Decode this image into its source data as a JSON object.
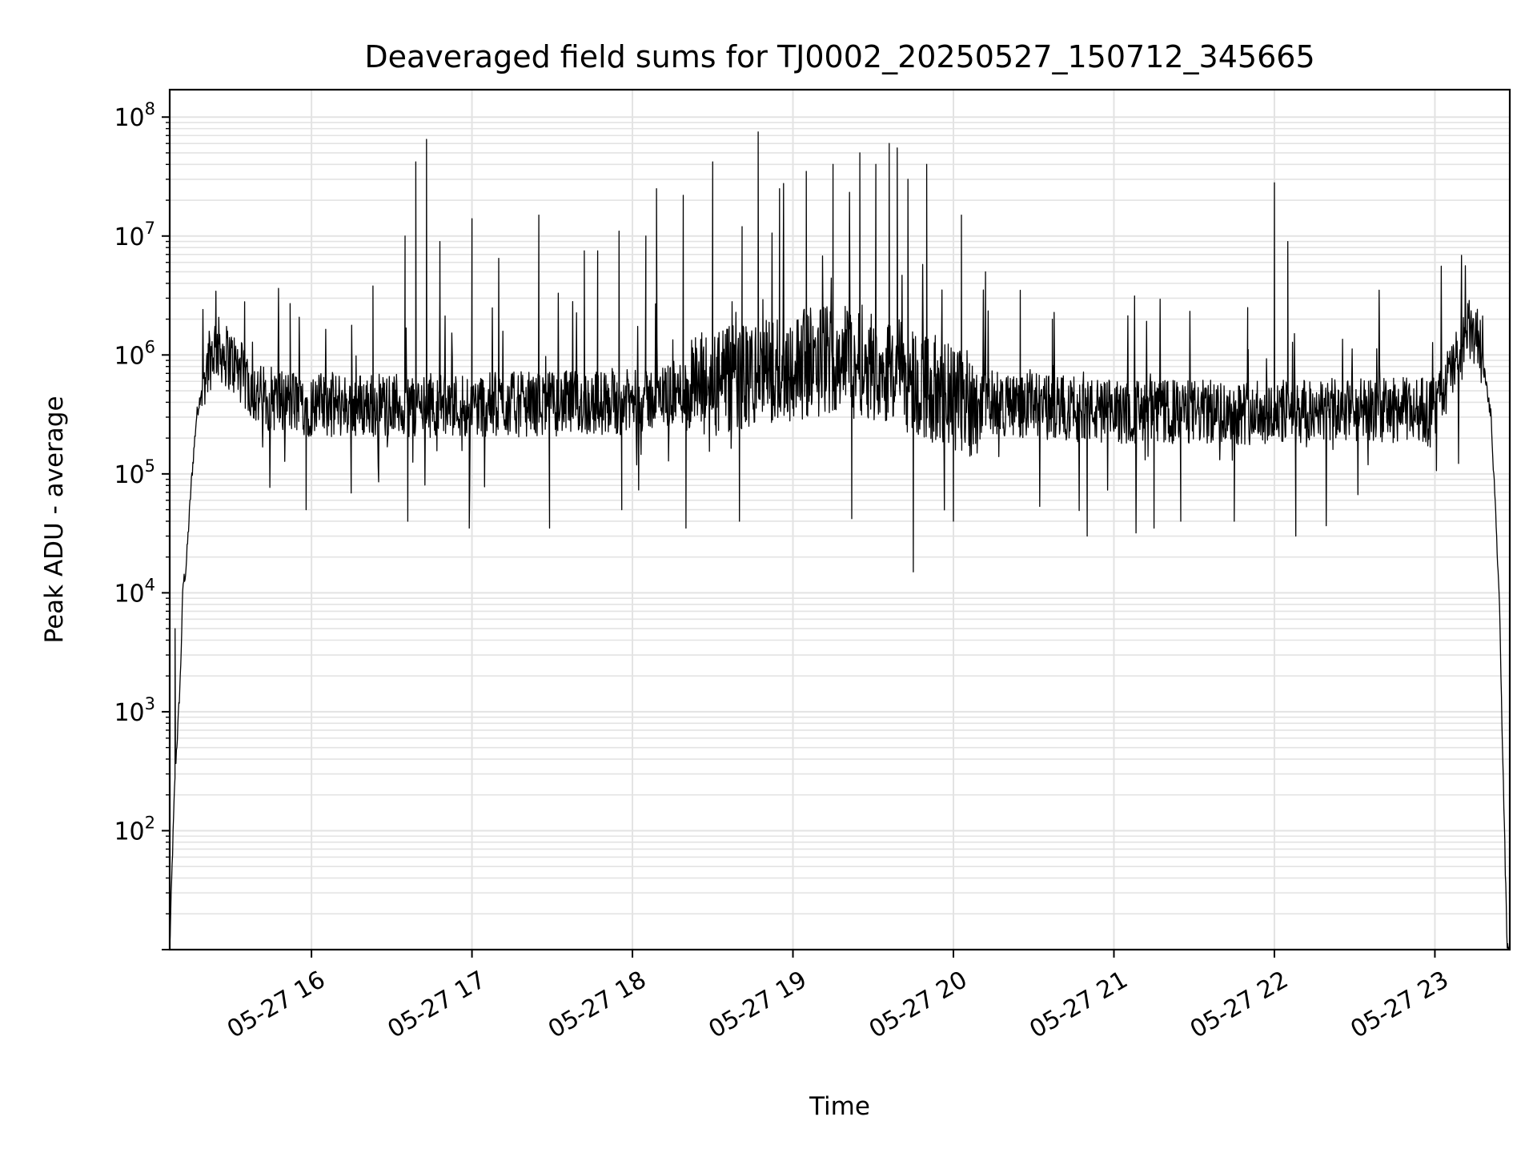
{
  "chart_data": {
    "type": "line",
    "title": "Deaveraged field sums for TJ0002_20250527_150712_345665",
    "xlabel": "Time",
    "ylabel": "Peak ADU - average",
    "yscale": "log",
    "ylim": [
      10,
      170000000
    ],
    "xlim": [
      "2025-05-27 15:07",
      "2025-05-27 23:28"
    ],
    "grid": true,
    "x_ticks": [
      "05-27 16",
      "05-27 17",
      "05-27 18",
      "05-27 19",
      "05-27 20",
      "05-27 21",
      "05-27 22",
      "05-27 23"
    ],
    "y_ticks": [
      {
        "value": 100,
        "base": "10",
        "exp": "2"
      },
      {
        "value": 1000,
        "base": "10",
        "exp": "3"
      },
      {
        "value": 10000,
        "base": "10",
        "exp": "4"
      },
      {
        "value": 100000,
        "base": "10",
        "exp": "5"
      },
      {
        "value": 1000000,
        "base": "10",
        "exp": "6"
      },
      {
        "value": 10000000,
        "base": "10",
        "exp": "7"
      },
      {
        "value": 100000000,
        "base": "10",
        "exp": "8"
      }
    ],
    "series": [
      {
        "color": "#000000",
        "baseline": [
          {
            "t": "15:07",
            "v": 10
          },
          {
            "t": "15:08",
            "v": 60
          },
          {
            "t": "15:09",
            "v": 300
          },
          {
            "t": "15:10",
            "v": 700
          },
          {
            "t": "15:11",
            "v": 2000
          },
          {
            "t": "15:12",
            "v": 12000
          },
          {
            "t": "15:13",
            "v": 15000
          },
          {
            "t": "15:15",
            "v": 80000
          },
          {
            "t": "15:17",
            "v": 300000
          },
          {
            "t": "15:20",
            "v": 700000
          },
          {
            "t": "15:24",
            "v": 1200000
          },
          {
            "t": "15:30",
            "v": 900000
          },
          {
            "t": "15:40",
            "v": 450000
          },
          {
            "t": "16:00",
            "v": 380000
          },
          {
            "t": "17:00",
            "v": 380000
          },
          {
            "t": "18:00",
            "v": 400000
          },
          {
            "t": "18:30",
            "v": 550000
          },
          {
            "t": "19:00",
            "v": 800000
          },
          {
            "t": "19:20",
            "v": 1000000
          },
          {
            "t": "19:40",
            "v": 700000
          },
          {
            "t": "20:00",
            "v": 420000
          },
          {
            "t": "21:00",
            "v": 330000
          },
          {
            "t": "22:00",
            "v": 330000
          },
          {
            "t": "23:00",
            "v": 350000
          },
          {
            "t": "23:08",
            "v": 900000
          },
          {
            "t": "23:13",
            "v": 1600000
          },
          {
            "t": "23:17",
            "v": 1200000
          },
          {
            "t": "23:21",
            "v": 300000
          },
          {
            "t": "23:24",
            "v": 10000
          },
          {
            "t": "23:26",
            "v": 100
          },
          {
            "t": "23:27",
            "v": 10
          }
        ],
        "spikes": [
          {
            "t": "15:09",
            "v": 5000
          },
          {
            "t": "15:35",
            "v": 2800000
          },
          {
            "t": "15:52",
            "v": 2700000
          },
          {
            "t": "16:23",
            "v": 3800000
          },
          {
            "t": "16:35",
            "v": 10000000
          },
          {
            "t": "16:39",
            "v": 42000000
          },
          {
            "t": "16:43",
            "v": 65000000
          },
          {
            "t": "16:48",
            "v": 9000000
          },
          {
            "t": "17:00",
            "v": 14000000
          },
          {
            "t": "17:10",
            "v": 6500000
          },
          {
            "t": "17:25",
            "v": 15000000
          },
          {
            "t": "17:42",
            "v": 7500000
          },
          {
            "t": "17:47",
            "v": 7500000
          },
          {
            "t": "17:55",
            "v": 11000000
          },
          {
            "t": "18:05",
            "v": 10000000
          },
          {
            "t": "18:09",
            "v": 25000000
          },
          {
            "t": "18:19",
            "v": 22000000
          },
          {
            "t": "18:30",
            "v": 42000000
          },
          {
            "t": "18:41",
            "v": 12000000
          },
          {
            "t": "18:47",
            "v": 75000000
          },
          {
            "t": "18:55",
            "v": 25000000
          },
          {
            "t": "19:05",
            "v": 35000000
          },
          {
            "t": "19:15",
            "v": 40000000
          },
          {
            "t": "19:25",
            "v": 50000000
          },
          {
            "t": "19:31",
            "v": 40000000
          },
          {
            "t": "19:36",
            "v": 60000000
          },
          {
            "t": "19:39",
            "v": 55000000
          },
          {
            "t": "19:43",
            "v": 30000000
          },
          {
            "t": "19:50",
            "v": 40000000
          },
          {
            "t": "20:03",
            "v": 15000000
          },
          {
            "t": "20:12",
            "v": 5000000
          },
          {
            "t": "20:25",
            "v": 3500000
          },
          {
            "t": "20:37",
            "v": 2000000
          },
          {
            "t": "21:50",
            "v": 2500000
          },
          {
            "t": "22:00",
            "v": 28000000
          },
          {
            "t": "22:05",
            "v": 9000000
          }
        ],
        "dips": [
          {
            "t": "15:58",
            "v": 50000
          },
          {
            "t": "16:36",
            "v": 40000
          },
          {
            "t": "16:59",
            "v": 35000
          },
          {
            "t": "17:29",
            "v": 35000
          },
          {
            "t": "17:56",
            "v": 50000
          },
          {
            "t": "18:20",
            "v": 35000
          },
          {
            "t": "18:40",
            "v": 40000
          },
          {
            "t": "19:22",
            "v": 42000
          },
          {
            "t": "19:45",
            "v": 15000
          },
          {
            "t": "20:00",
            "v": 40000
          },
          {
            "t": "20:50",
            "v": 30000
          },
          {
            "t": "21:15",
            "v": 35000
          },
          {
            "t": "21:25",
            "v": 40000
          },
          {
            "t": "21:45",
            "v": 40000
          },
          {
            "t": "22:08",
            "v": 30000
          }
        ]
      }
    ]
  }
}
